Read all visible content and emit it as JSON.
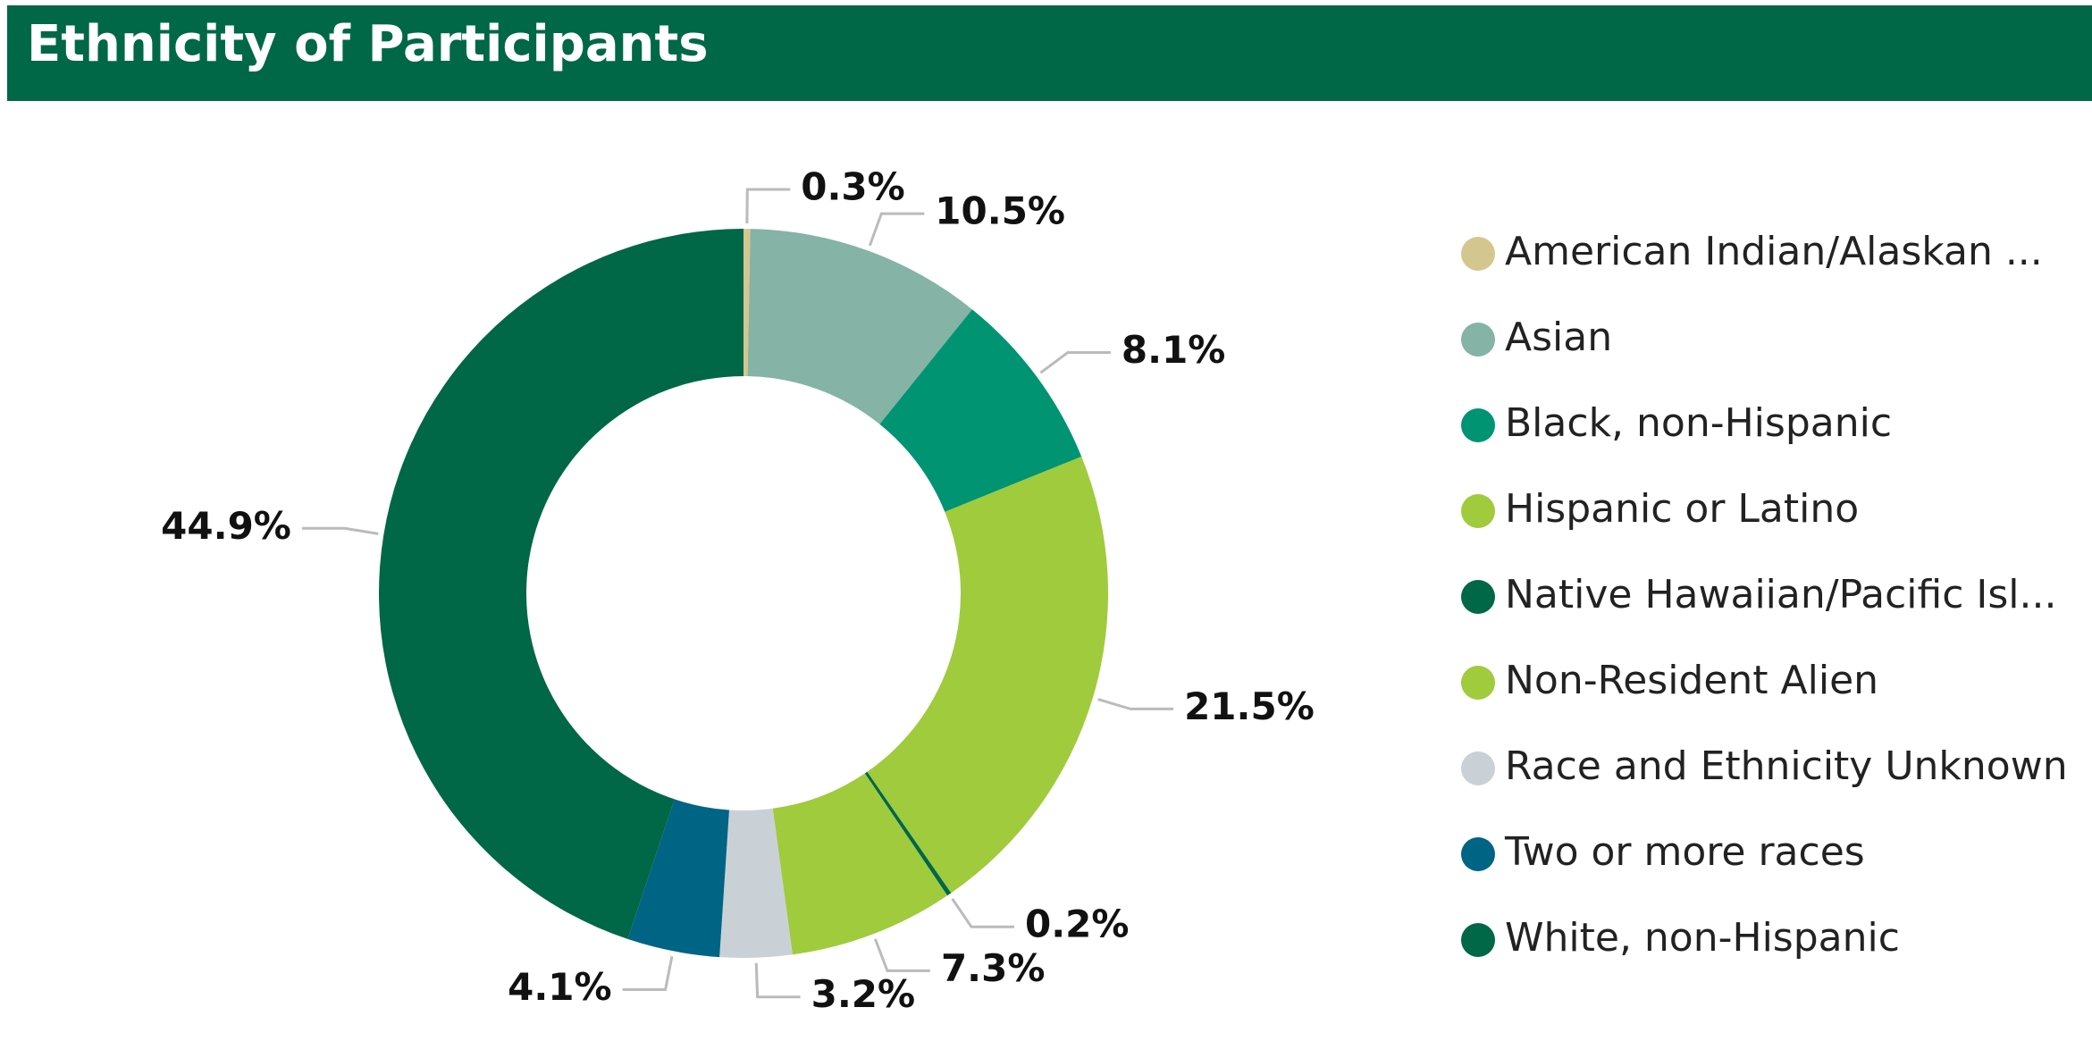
{
  "chart_data": {
    "type": "donut",
    "title": "Ethnicity of Participants",
    "categories": [
      "American Indian/Alaskan ...",
      "Asian",
      "Black, non-Hispanic",
      "Hispanic or Latino",
      "Native Hawaiian/Pacific Isl...",
      "Non-Resident Alien",
      "Race and Ethnicity Unknown",
      "Two or more races",
      "White, non-Hispanic"
    ],
    "values": [
      0.3,
      10.5,
      8.1,
      21.5,
      0.2,
      7.3,
      3.2,
      4.1,
      44.9
    ],
    "value_labels": [
      "0.3%",
      "10.5%",
      "8.1%",
      "21.5%",
      "0.2%",
      "7.3%",
      "3.2%",
      "4.1%",
      "44.9%"
    ],
    "colors": [
      "#d4c68f",
      "#85b3a6",
      "#009473",
      "#9fcb3d",
      "#006747",
      "#9fcb3d",
      "#c9d1d7",
      "#006485",
      "#006747"
    ],
    "legend": "right"
  }
}
